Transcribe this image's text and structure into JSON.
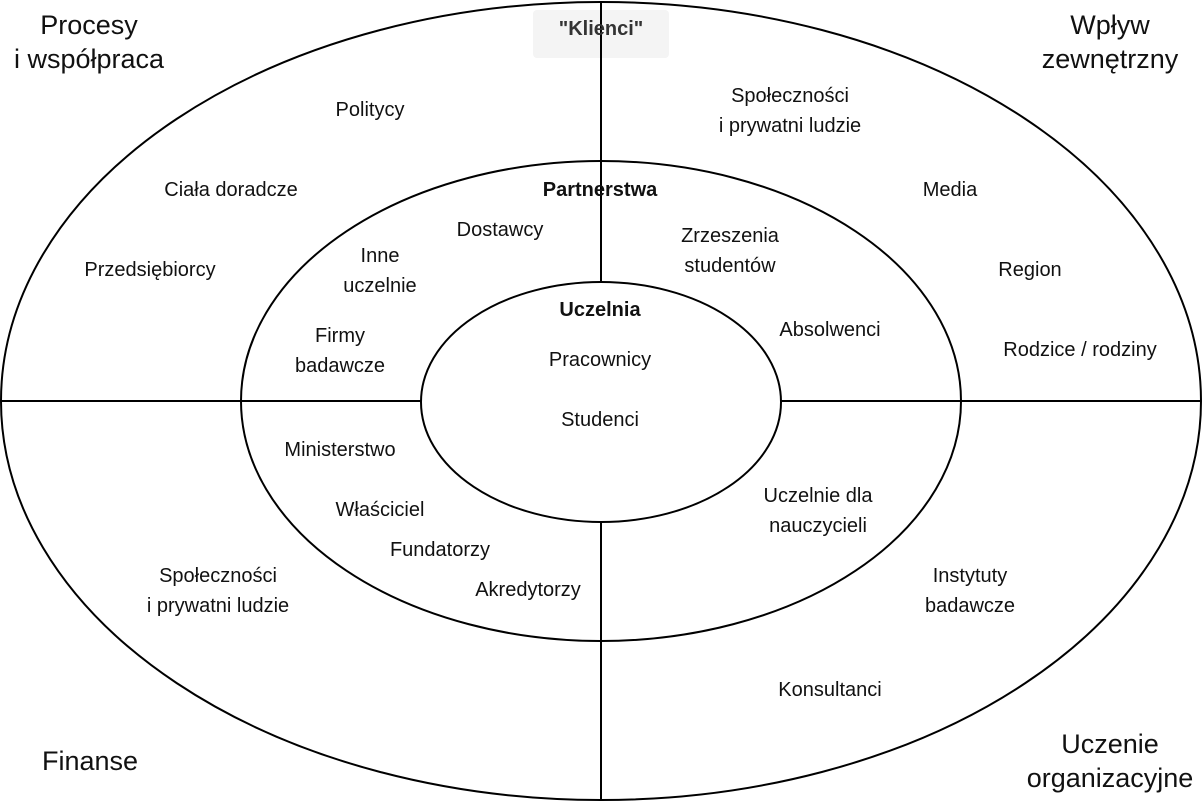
{
  "colors": {
    "stroke": "#000000",
    "background": "#ffffff",
    "klienci_bg": "#f4f4f4"
  },
  "corners": {
    "top_left": [
      "Procesy",
      "i współpraca"
    ],
    "top_right": [
      "Wpływ",
      "zewnętrzny"
    ],
    "bottom_left": "Finanse",
    "bottom_right": [
      "Uczenie",
      "organizacyjne"
    ]
  },
  "klienci": "\"Klienci\"",
  "outer": {
    "politycy": "Politycy",
    "ciala_doradcze": "Ciała doradcze",
    "przedsiebiorcy": "Przedsiębiorcy",
    "spolecznosci_top": [
      "Społeczności",
      "i prywatni ludzie"
    ],
    "media": "Media",
    "region": "Region",
    "rodzice": "Rodzice / rodziny",
    "spolecznosci_bottom": [
      "Społeczności",
      "i prywatni ludzie"
    ],
    "instytuty": [
      "Instytuty",
      "badawcze"
    ],
    "konsultanci": "Konsultanci"
  },
  "middle": {
    "title": "Partnerstwa",
    "dostawcy": "Dostawcy",
    "inne_uczelnie": [
      "Inne",
      "uczelnie"
    ],
    "firmy_badawcze": [
      "Firmy",
      "badawcze"
    ],
    "zrzeszenia": [
      "Zrzeszenia",
      "studentów"
    ],
    "absolwenci": "Absolwenci",
    "ministerstwo": "Ministerstwo",
    "wlasciciel": "Właściciel",
    "fundatorzy": "Fundatorzy",
    "akredytorzy": "Akredytorzy",
    "uczelnie_nauczycieli": [
      "Uczelnie dla",
      "nauczycieli"
    ]
  },
  "inner": {
    "title": "Uczelnia",
    "pracownicy": "Pracownicy",
    "studenci": "Studenci"
  }
}
